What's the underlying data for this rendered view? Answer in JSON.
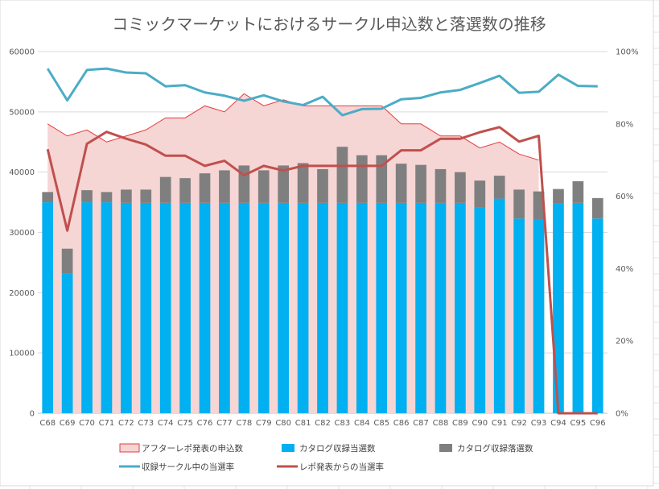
{
  "chart_data": {
    "type": "bar",
    "title": "コミックマーケットにおけるサークル申込数と落選数の推移",
    "categories": [
      "C68",
      "C69",
      "C70",
      "C71",
      "C72",
      "C73",
      "C74",
      "C75",
      "C76",
      "C77",
      "C78",
      "C79",
      "C80",
      "C81",
      "C82",
      "C83",
      "C84",
      "C85",
      "C86",
      "C87",
      "C88",
      "C89",
      "C90",
      "C91",
      "C92",
      "C93",
      "C94",
      "C95",
      "C96"
    ],
    "y_left": {
      "ylim": [
        0,
        60000
      ],
      "ticks": [
        "0",
        "10000",
        "20000",
        "30000",
        "40000",
        "50000",
        "60000"
      ]
    },
    "y_right": {
      "ylim": [
        0,
        100
      ],
      "ticks": [
        "0%",
        "20%",
        "40%",
        "60%",
        "80%",
        "100%"
      ]
    },
    "grid": true,
    "legend_position": "bottom",
    "series": [
      {
        "name": "アフターレポ発表の申込数",
        "kind": "area",
        "axis": "left",
        "color": "#e63c3c",
        "fill": "#f6d5d5",
        "values": [
          48000,
          46000,
          47000,
          45000,
          46000,
          47000,
          49000,
          49000,
          51000,
          50000,
          53000,
          51000,
          52000,
          51000,
          51000,
          51000,
          51000,
          51000,
          48000,
          48000,
          46000,
          46000,
          44000,
          45000,
          43000,
          42000,
          null,
          null,
          null
        ]
      },
      {
        "name": "カタログ収録当選数",
        "kind": "bar-stack",
        "axis": "left",
        "color": "#00b0f0",
        "values": [
          35000,
          23200,
          35000,
          35000,
          34900,
          34900,
          34900,
          34900,
          34900,
          34900,
          34900,
          34900,
          34900,
          34900,
          34900,
          34900,
          34900,
          34900,
          34900,
          34900,
          34900,
          34900,
          34200,
          35600,
          32300,
          32200,
          34800,
          34900,
          32300
        ]
      },
      {
        "name": "カタログ収録落選数",
        "kind": "bar-stack",
        "axis": "left",
        "color": "#7f7f7f",
        "values": [
          1700,
          4100,
          2000,
          1700,
          2200,
          2200,
          4300,
          4100,
          4900,
          5400,
          6200,
          5400,
          6200,
          6600,
          5600,
          9300,
          7900,
          7900,
          6500,
          6300,
          5600,
          5100,
          4400,
          3800,
          4800,
          4600,
          2400,
          3600,
          3400
        ]
      },
      {
        "name": "収録サークル中の当選率",
        "kind": "line",
        "axis": "right",
        "color": "#4bacc6",
        "values": [
          95.3,
          86.5,
          94.9,
          95.3,
          94.2,
          94.0,
          90.4,
          90.7,
          88.7,
          87.8,
          86.4,
          87.9,
          86.2,
          85.2,
          87.5,
          82.4,
          84.1,
          84.2,
          86.8,
          87.2,
          88.7,
          89.4,
          91.3,
          93.3,
          88.6,
          88.9,
          93.6,
          90.5,
          90.4
        ]
      },
      {
        "name": "レポ発表からの当選率",
        "kind": "line",
        "axis": "right",
        "color": "#c0504d",
        "values": [
          73,
          50.5,
          74.5,
          77.8,
          75.9,
          74.3,
          71.2,
          71.2,
          68.4,
          69.8,
          65.8,
          68.4,
          67.1,
          68.4,
          68.4,
          68.4,
          68.4,
          68.4,
          72.7,
          72.7,
          75.9,
          75.9,
          77.7,
          79.1,
          75.1,
          76.7,
          0,
          0,
          0
        ]
      }
    ]
  }
}
